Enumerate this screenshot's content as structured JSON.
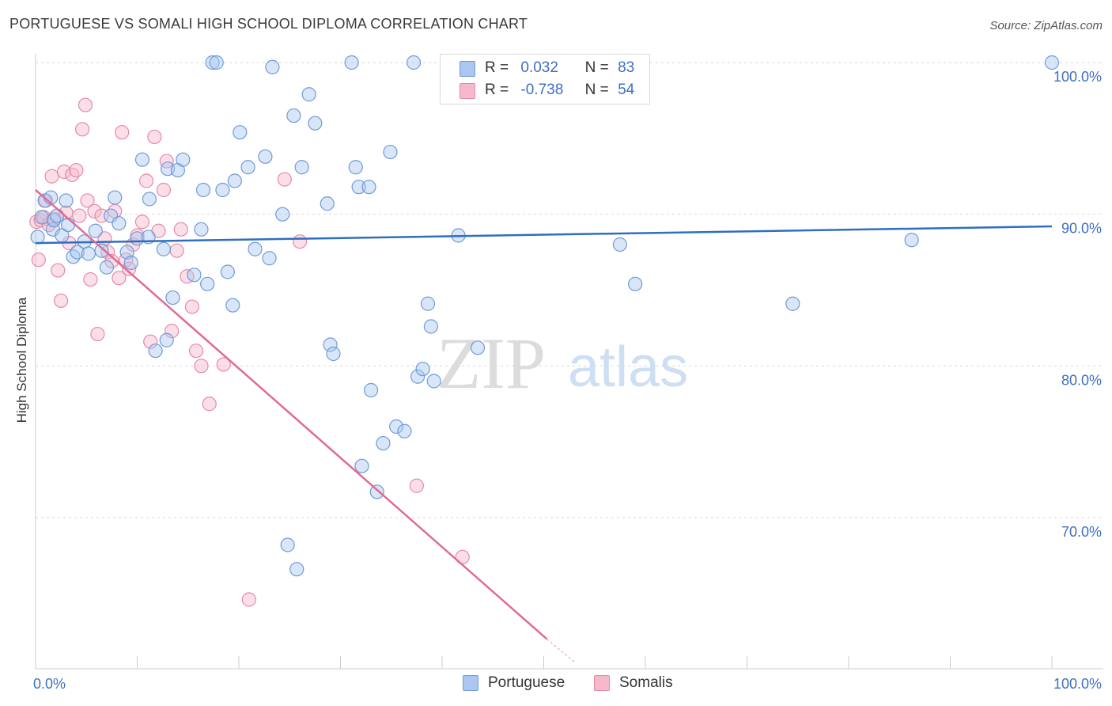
{
  "header": {
    "title": "PORTUGUESE VS SOMALI HIGH SCHOOL DIPLOMA CORRELATION CHART",
    "source": "Source: ZipAtlas.com"
  },
  "watermark": {
    "zip": "ZIP",
    "atlas": "atlas"
  },
  "legend": {
    "r_label": "R =",
    "n_label": "N =",
    "rows": [
      {
        "r": "0.032",
        "n": "83"
      },
      {
        "r": "-0.738",
        "n": "54"
      }
    ]
  },
  "colors": {
    "portuguese_fill": "#a9c7f0",
    "portuguese_stroke": "#6f9bd8",
    "portuguese_line": "#2f6ec0",
    "somali_fill": "#f6b8cb",
    "somali_stroke": "#e68aa6",
    "somali_line": "#e06b95",
    "accent": "#3f6fc0"
  },
  "chart_data": {
    "type": "scatter",
    "title": "PORTUGUESE VS SOMALI HIGH SCHOOL DIPLOMA CORRELATION CHART",
    "xlabel": "",
    "ylabel": "High School Diploma",
    "xlim": [
      0,
      100
    ],
    "ylim": [
      60.5,
      101.5
    ],
    "x_ticks": [
      "0.0%",
      "100.0%"
    ],
    "y_ticks": [
      {
        "value": 100,
        "label": "100.0%"
      },
      {
        "value": 90,
        "label": "90.0%"
      },
      {
        "value": 80,
        "label": "80.0%"
      },
      {
        "value": 70,
        "label": "70.0%"
      }
    ],
    "series": [
      {
        "name": "Portuguese",
        "R": 0.032,
        "N": 83,
        "trend": {
          "x": [
            0,
            100
          ],
          "y": [
            88.1,
            89.2
          ]
        },
        "points": [
          [
            0.2,
            88.5
          ],
          [
            0.6,
            89.8
          ],
          [
            0.9,
            90.9
          ],
          [
            1.5,
            91.1
          ],
          [
            1.7,
            89.0
          ],
          [
            1.8,
            89.6
          ],
          [
            2.1,
            89.9
          ],
          [
            2.6,
            88.6
          ],
          [
            3.0,
            90.9
          ],
          [
            3.2,
            89.3
          ],
          [
            3.7,
            87.2
          ],
          [
            4.1,
            87.5
          ],
          [
            4.8,
            88.2
          ],
          [
            5.2,
            87.4
          ],
          [
            5.9,
            88.9
          ],
          [
            6.5,
            87.6
          ],
          [
            7.0,
            86.5
          ],
          [
            7.4,
            89.9
          ],
          [
            7.8,
            91.1
          ],
          [
            8.2,
            89.4
          ],
          [
            9.0,
            87.5
          ],
          [
            9.4,
            86.8
          ],
          [
            10.0,
            88.4
          ],
          [
            10.5,
            93.6
          ],
          [
            11.1,
            88.5
          ],
          [
            11.2,
            91.0
          ],
          [
            11.8,
            81.0
          ],
          [
            12.6,
            87.7
          ],
          [
            12.9,
            81.7
          ],
          [
            13.0,
            93.0
          ],
          [
            13.5,
            84.5
          ],
          [
            14.0,
            92.9
          ],
          [
            14.5,
            93.6
          ],
          [
            15.6,
            86.0
          ],
          [
            16.3,
            89.0
          ],
          [
            16.5,
            91.6
          ],
          [
            16.9,
            85.4
          ],
          [
            17.4,
            100
          ],
          [
            17.8,
            100
          ],
          [
            18.4,
            91.6
          ],
          [
            18.9,
            86.2
          ],
          [
            19.4,
            84.0
          ],
          [
            19.6,
            92.2
          ],
          [
            20.1,
            95.4
          ],
          [
            20.9,
            93.1
          ],
          [
            21.6,
            87.7
          ],
          [
            22.6,
            93.8
          ],
          [
            23.0,
            87.1
          ],
          [
            23.3,
            99.7
          ],
          [
            24.3,
            90.0
          ],
          [
            24.8,
            68.2
          ],
          [
            25.4,
            96.5
          ],
          [
            25.7,
            66.6
          ],
          [
            26.2,
            93.1
          ],
          [
            26.9,
            97.9
          ],
          [
            27.5,
            96.0
          ],
          [
            28.7,
            90.7
          ],
          [
            29.0,
            81.4
          ],
          [
            29.3,
            80.8
          ],
          [
            31.1,
            100
          ],
          [
            31.5,
            93.1
          ],
          [
            31.8,
            91.8
          ],
          [
            32.1,
            73.4
          ],
          [
            32.8,
            91.8
          ],
          [
            33.0,
            78.4
          ],
          [
            33.6,
            71.7
          ],
          [
            34.2,
            74.9
          ],
          [
            34.9,
            94.1
          ],
          [
            35.5,
            76.0
          ],
          [
            36.3,
            75.7
          ],
          [
            37.2,
            100
          ],
          [
            37.6,
            79.3
          ],
          [
            38.1,
            79.8
          ],
          [
            38.6,
            84.1
          ],
          [
            38.9,
            82.6
          ],
          [
            39.2,
            79.0
          ],
          [
            41.6,
            88.6
          ],
          [
            43.5,
            81.2
          ],
          [
            57.5,
            88.0
          ],
          [
            59.0,
            85.4
          ],
          [
            74.5,
            84.1
          ],
          [
            86.2,
            88.3
          ],
          [
            100,
            100
          ]
        ]
      },
      {
        "name": "Somalis",
        "R": -0.738,
        "N": 54,
        "trend": {
          "x": [
            0,
            50.3
          ],
          "y": [
            91.6,
            62.0
          ]
        },
        "trend_extension": {
          "x": [
            50.3,
            53.0
          ],
          "y": [
            62.0,
            60.5
          ]
        },
        "points": [
          [
            0.1,
            89.5
          ],
          [
            0.3,
            87.0
          ],
          [
            0.5,
            89.6
          ],
          [
            0.8,
            89.8
          ],
          [
            1.0,
            90.9
          ],
          [
            1.3,
            89.3
          ],
          [
            1.6,
            92.5
          ],
          [
            1.8,
            89.7
          ],
          [
            2.2,
            86.3
          ],
          [
            2.5,
            84.3
          ],
          [
            2.8,
            92.8
          ],
          [
            3.0,
            90.1
          ],
          [
            3.3,
            88.1
          ],
          [
            3.6,
            92.6
          ],
          [
            4.0,
            92.9
          ],
          [
            4.3,
            89.9
          ],
          [
            4.6,
            95.6
          ],
          [
            4.9,
            97.2
          ],
          [
            5.1,
            90.9
          ],
          [
            5.4,
            85.7
          ],
          [
            5.8,
            90.2
          ],
          [
            6.1,
            82.1
          ],
          [
            6.5,
            89.9
          ],
          [
            6.8,
            88.4
          ],
          [
            7.1,
            87.5
          ],
          [
            7.5,
            86.9
          ],
          [
            7.8,
            90.2
          ],
          [
            8.2,
            85.8
          ],
          [
            8.5,
            95.4
          ],
          [
            8.9,
            87.0
          ],
          [
            9.2,
            86.4
          ],
          [
            9.6,
            88.0
          ],
          [
            10.0,
            88.6
          ],
          [
            10.5,
            89.5
          ],
          [
            10.9,
            92.2
          ],
          [
            11.3,
            81.6
          ],
          [
            11.7,
            95.1
          ],
          [
            12.1,
            88.9
          ],
          [
            12.6,
            91.6
          ],
          [
            12.9,
            93.5
          ],
          [
            13.4,
            82.3
          ],
          [
            13.9,
            87.6
          ],
          [
            14.3,
            89.0
          ],
          [
            14.9,
            85.9
          ],
          [
            15.4,
            83.9
          ],
          [
            15.8,
            81.0
          ],
          [
            16.3,
            80.0
          ],
          [
            17.1,
            77.5
          ],
          [
            18.5,
            80.1
          ],
          [
            21.0,
            64.6
          ],
          [
            24.5,
            92.3
          ],
          [
            26.0,
            88.2
          ],
          [
            37.5,
            72.1
          ],
          [
            42.0,
            67.4
          ]
        ]
      }
    ]
  }
}
